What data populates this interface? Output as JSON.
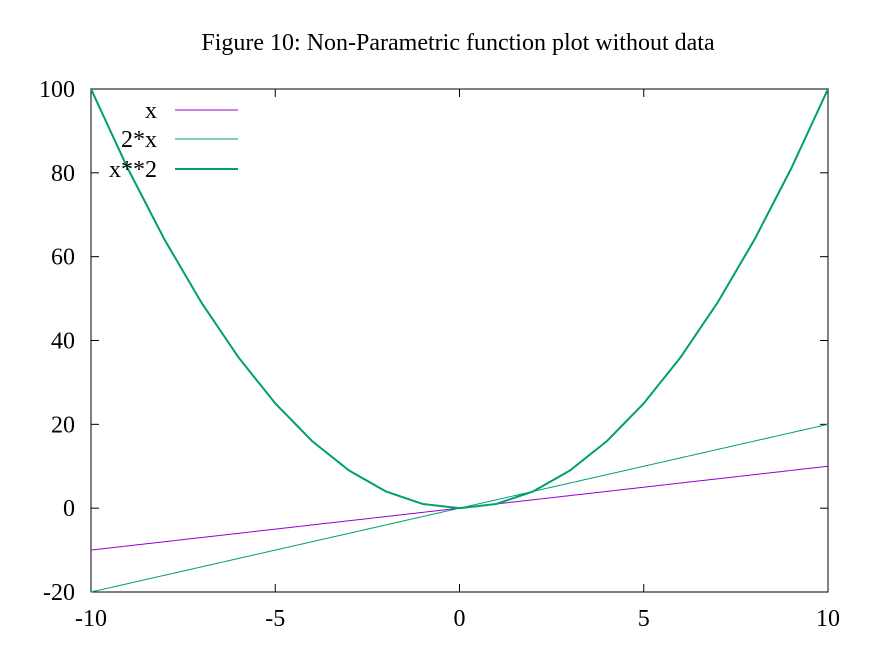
{
  "chart_data": {
    "type": "line",
    "title": "Figure 10: Non-Parametric function plot without data",
    "xlabel": "",
    "ylabel": "",
    "xlim": [
      -10,
      10
    ],
    "ylim": [
      -20,
      100
    ],
    "x_ticks": [
      "-10",
      "-5",
      "0",
      "5",
      "10"
    ],
    "y_ticks": [
      "-20",
      "0",
      "20",
      "40",
      "60",
      "80",
      "100"
    ],
    "grid": false,
    "legend_position": "top-left",
    "series": [
      {
        "name": "x",
        "color": "#9400d3",
        "x": [
          -10,
          -8,
          -6,
          -4,
          -2,
          0,
          2,
          4,
          6,
          8,
          10
        ],
        "y": [
          -10,
          -8,
          -6,
          -4,
          -2,
          0,
          2,
          4,
          6,
          8,
          10
        ]
      },
      {
        "name": "2*x",
        "color": "#009e73",
        "x": [
          -10,
          -8,
          -6,
          -4,
          -2,
          0,
          2,
          4,
          6,
          8,
          10
        ],
        "y": [
          -20,
          -16,
          -12,
          -8,
          -4,
          0,
          4,
          8,
          12,
          16,
          20
        ]
      },
      {
        "name": "x**2",
        "color": "#009e73",
        "x": [
          -10,
          -9,
          -8,
          -7,
          -6,
          -5,
          -4,
          -3,
          -2,
          -1,
          0,
          1,
          2,
          3,
          4,
          5,
          6,
          7,
          8,
          9,
          10
        ],
        "y": [
          100,
          81,
          64,
          49,
          36,
          25,
          16,
          9,
          4,
          1,
          0,
          1,
          4,
          9,
          16,
          25,
          36,
          49,
          64,
          81,
          100
        ]
      }
    ]
  }
}
